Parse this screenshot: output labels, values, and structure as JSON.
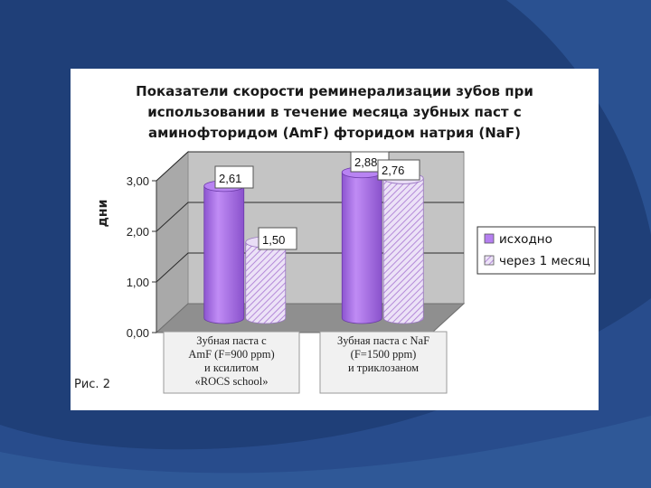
{
  "slide": {
    "figure_caption": "Рис. 2"
  },
  "colors": {
    "background": "#1f3f78",
    "series_initial": "#b57ff0",
    "series_month": "#d9c6ee"
  },
  "chart_data": {
    "type": "bar",
    "title_lines": [
      "Показатели скорости реминерализации зубов при",
      "использовании в течение месяца зубных паст с",
      "аминофторидом (AmF)  фторидом натрия (NaF)"
    ],
    "ylabel": "дни",
    "xlabel": "",
    "ylim": [
      0,
      3
    ],
    "y_ticks": [
      "0,00",
      "1,00",
      "2,00",
      "3,00"
    ],
    "grid": true,
    "legend_position": "right",
    "categories": [
      [
        "Зубная паста с",
        "AmF (F=900 ppm)",
        "и ксилитом",
        "«ROCS school»"
      ],
      [
        "Зубная паста с NaF",
        "(F=1500 ppm)",
        "и триклозаном"
      ]
    ],
    "series": [
      {
        "name": "исходно",
        "values": [
          2.61,
          2.88
        ],
        "labels": [
          "2,61",
          "2,88"
        ],
        "pattern": "solid"
      },
      {
        "name": "через 1 месяц",
        "values": [
          1.5,
          2.76
        ],
        "labels": [
          "1,50",
          "2,76"
        ],
        "pattern": "hatched"
      }
    ]
  }
}
